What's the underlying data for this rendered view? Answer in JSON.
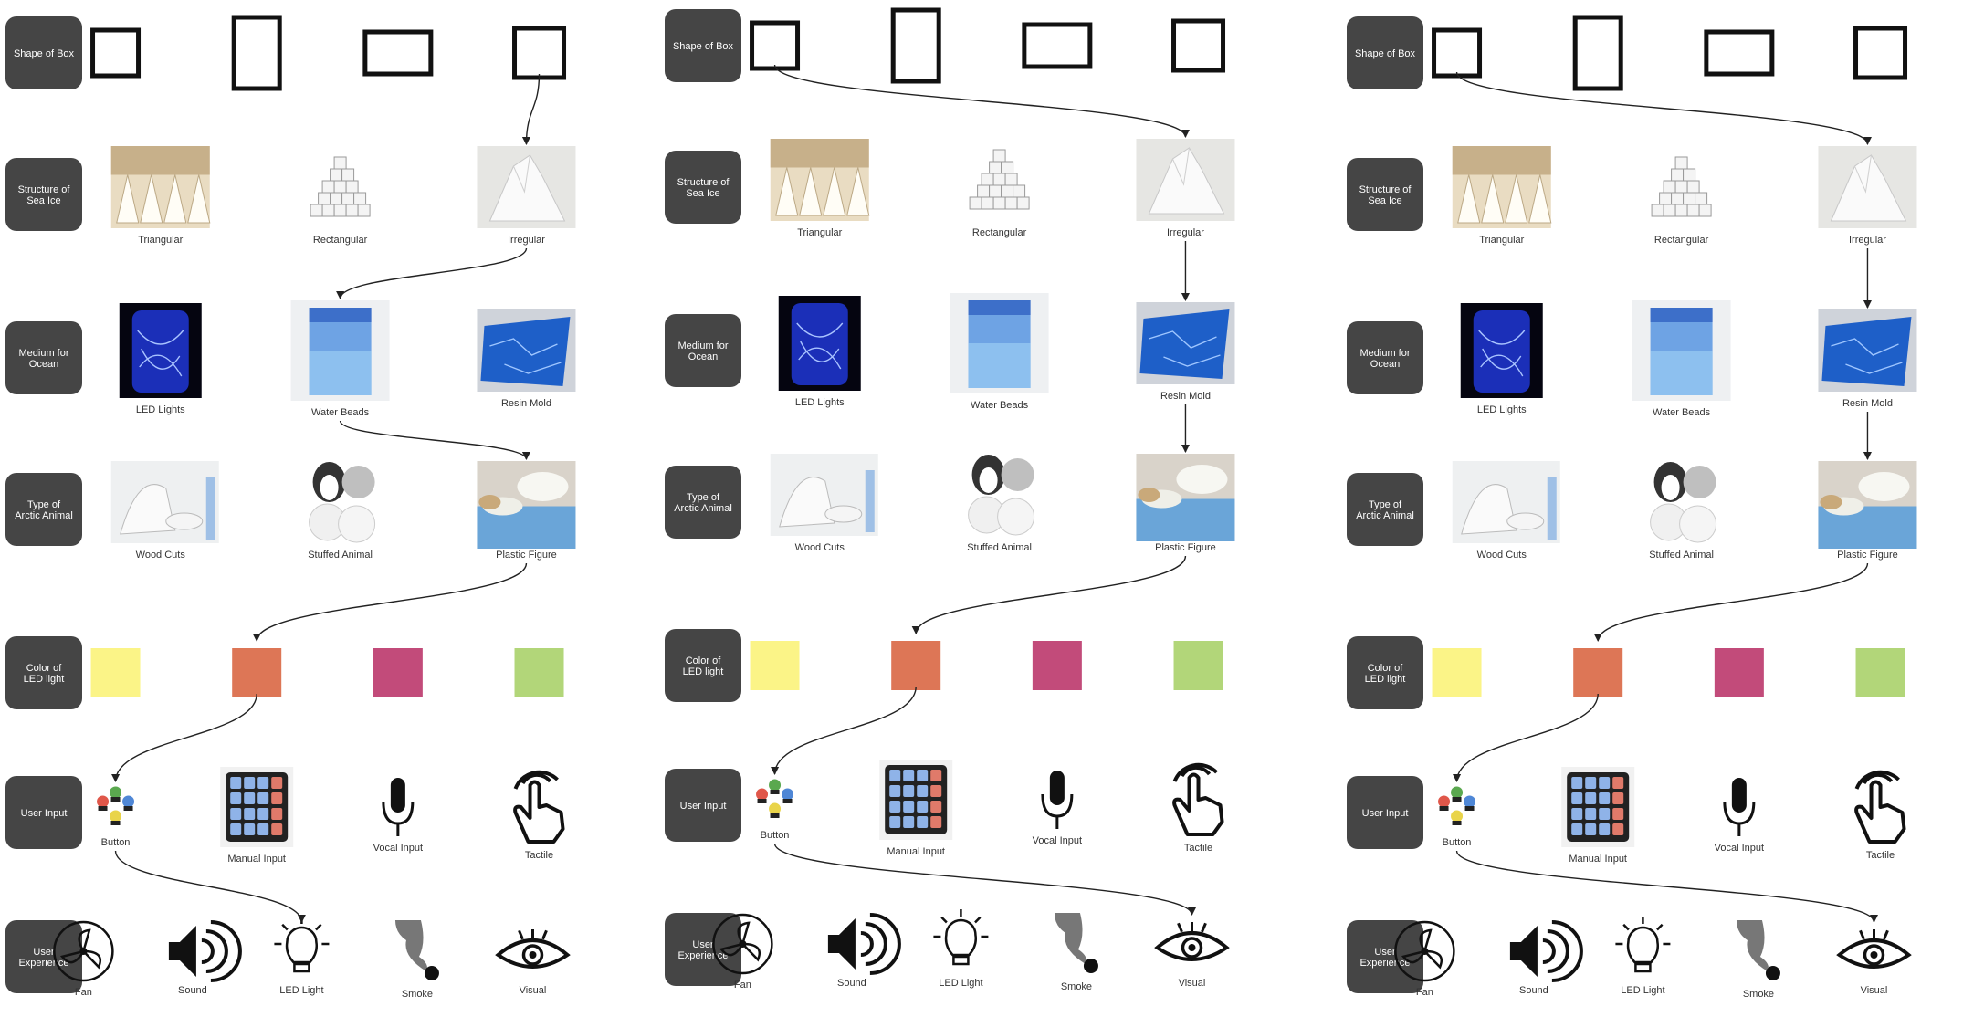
{
  "rows": [
    {
      "label": "Shape of Box",
      "kind": "shapes",
      "options": [
        "",
        "",
        "",
        ""
      ],
      "shapes": [
        "square",
        "tall",
        "wide",
        "square-l"
      ]
    },
    {
      "label": "Structure of Sea Ice",
      "kind": "photos",
      "options": [
        "Triangular",
        "Rectangular",
        "Irregular"
      ],
      "photos": [
        "sugar-cubes",
        "cube-pyramid",
        "iceberg"
      ]
    },
    {
      "label": "Medium for Ocean",
      "kind": "photos",
      "options": [
        "LED Lights",
        "Water Beads",
        "Resin Mold"
      ],
      "photos": [
        "led-jar",
        "bead-glass",
        "resin-tray"
      ]
    },
    {
      "label": "Type of Arctic Animal",
      "kind": "photos",
      "options": [
        "Wood Cuts",
        "Stuffed Animal",
        "Plastic Figure"
      ],
      "photos": [
        "wood-cuts",
        "stuffed-animals",
        "plastic-figures"
      ]
    },
    {
      "label": "Color of LED light",
      "kind": "colors",
      "options": [
        "",
        "",
        "",
        ""
      ],
      "colors": [
        "#fbf487",
        "#dd7656",
        "#c24b7a",
        "#b2d679"
      ]
    },
    {
      "label": "User Input",
      "kind": "icons",
      "options": [
        "Button",
        "Manual Input",
        "Vocal Input",
        "Tactile"
      ],
      "icons": [
        "button-icon",
        "keypad-icon",
        "microphone-icon",
        "tap-icon"
      ]
    },
    {
      "label": "User Experience",
      "kind": "icons",
      "options": [
        "Fan",
        "Sound",
        "LED Light",
        "Smoke",
        "Visual"
      ],
      "icons": [
        "fan-icon",
        "speaker-icon",
        "lightbulb-icon",
        "smoke-icon",
        "eye-icon"
      ]
    }
  ],
  "panels": [
    {
      "path": [
        3,
        2,
        1,
        2,
        1,
        0,
        2
      ]
    },
    {
      "path": [
        0,
        2,
        2,
        2,
        1,
        0,
        4
      ]
    },
    {
      "path": [
        0,
        2,
        2,
        2,
        1,
        0,
        4
      ]
    }
  ],
  "colors": {
    "pill": "#454545",
    "pill_text": "#ffffff",
    "label_text": "#333333",
    "connector": "#222222"
  }
}
